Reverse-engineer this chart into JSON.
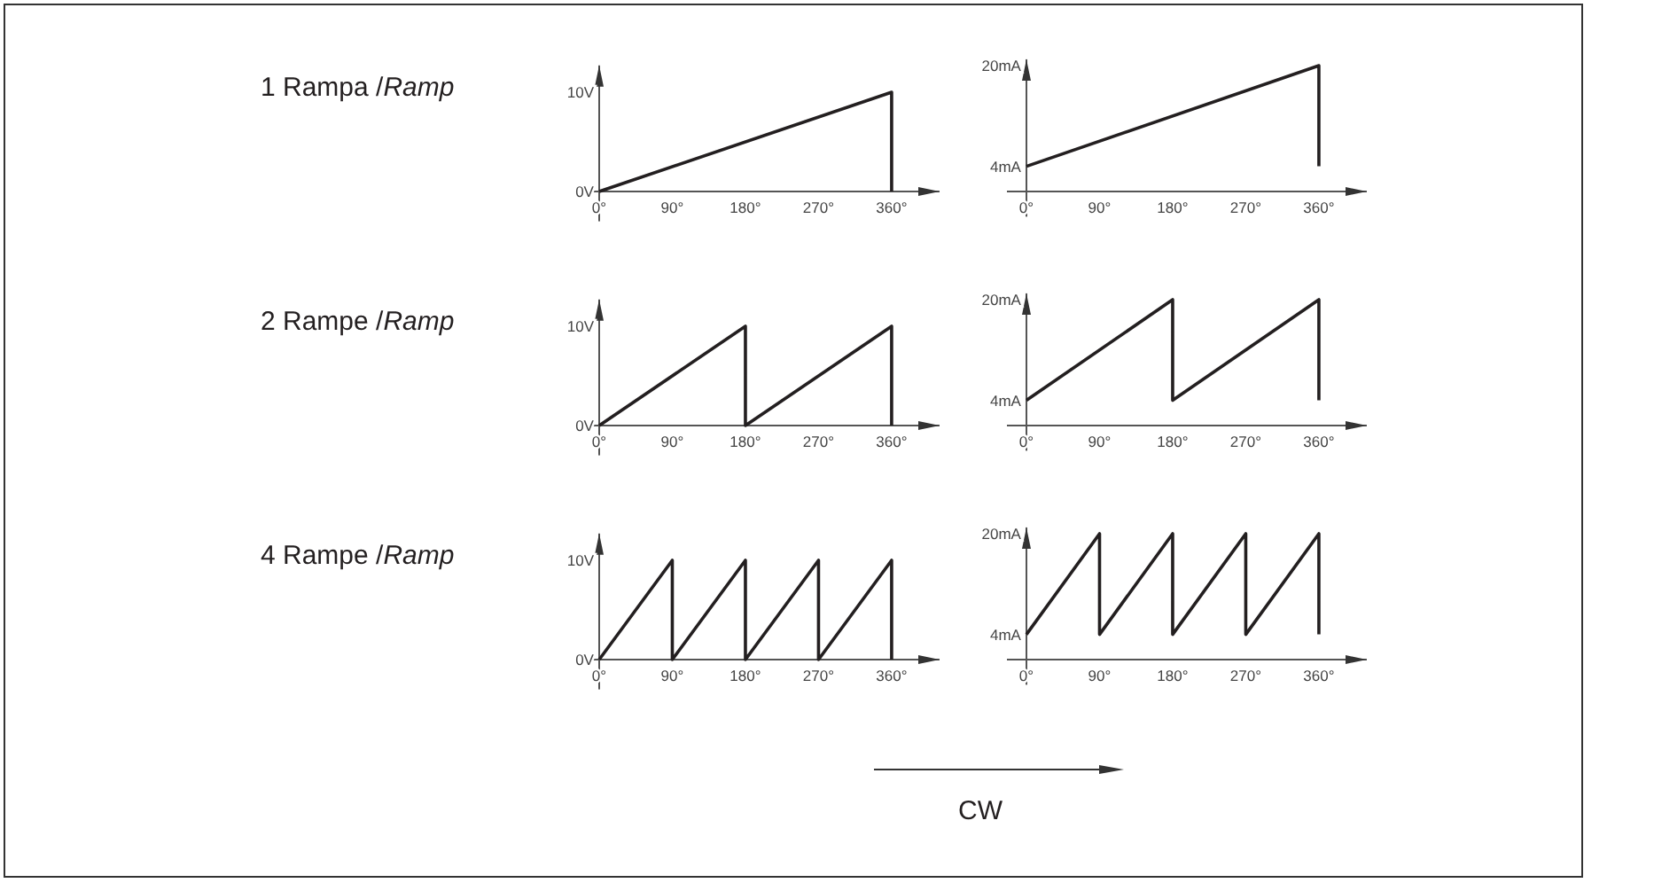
{
  "chart_data": [
    {
      "type": "line",
      "title": "1 Rampa /Ramp",
      "x": [
        0,
        360,
        360
      ],
      "values": [
        0,
        10,
        0
      ],
      "color": "#231f20",
      "xlim": [
        -24,
        419
      ],
      "ylim": [
        -3,
        12.7
      ],
      "xticks": [
        {
          "value": 0,
          "label": "0°"
        },
        {
          "value": 90,
          "label": "90°"
        },
        {
          "value": 180,
          "label": "180°"
        },
        {
          "value": 270,
          "label": "270°"
        },
        {
          "value": 360,
          "label": "360°"
        }
      ],
      "yticks": [
        {
          "value": 0,
          "label": "0V"
        },
        {
          "value": 10,
          "label": "10V"
        }
      ]
    },
    {
      "type": "line",
      "x": [
        0,
        360,
        360
      ],
      "values": [
        4,
        20,
        4
      ],
      "color": "#231f20",
      "xlim": [
        -24,
        419
      ],
      "ylim": [
        -4,
        21
      ],
      "xticks": [
        {
          "value": 0,
          "label": "0°"
        },
        {
          "value": 90,
          "label": "90°"
        },
        {
          "value": 180,
          "label": "180°"
        },
        {
          "value": 270,
          "label": "270°"
        },
        {
          "value": 360,
          "label": "360°"
        }
      ],
      "yticks": [
        {
          "value": 4,
          "label": "4mA"
        },
        {
          "value": 20,
          "label": "20mA"
        }
      ]
    },
    {
      "type": "line",
      "title": "2 Rampe /Ramp",
      "x": [
        0,
        180,
        180,
        360,
        360
      ],
      "values": [
        0,
        10,
        0,
        10,
        0
      ],
      "color": "#231f20",
      "xlim": [
        -24,
        419
      ],
      "ylim": [
        -3,
        12.7
      ],
      "xticks": [
        {
          "value": 0,
          "label": "0°"
        },
        {
          "value": 90,
          "label": "90°"
        },
        {
          "value": 180,
          "label": "180°"
        },
        {
          "value": 270,
          "label": "270°"
        },
        {
          "value": 360,
          "label": "360°"
        }
      ],
      "yticks": [
        {
          "value": 0,
          "label": "0V"
        },
        {
          "value": 10,
          "label": "10V"
        }
      ]
    },
    {
      "type": "line",
      "x": [
        0,
        180,
        180,
        360,
        360
      ],
      "values": [
        4,
        20,
        4,
        20,
        4
      ],
      "color": "#231f20",
      "xlim": [
        -24,
        419
      ],
      "ylim": [
        -4,
        21
      ],
      "xticks": [
        {
          "value": 0,
          "label": "0°"
        },
        {
          "value": 90,
          "label": "90°"
        },
        {
          "value": 180,
          "label": "180°"
        },
        {
          "value": 270,
          "label": "270°"
        },
        {
          "value": 360,
          "label": "360°"
        }
      ],
      "yticks": [
        {
          "value": 4,
          "label": "4mA"
        },
        {
          "value": 20,
          "label": "20mA"
        }
      ]
    },
    {
      "type": "line",
      "title": "4 Rampe /Ramp",
      "x": [
        0,
        90,
        90,
        180,
        180,
        270,
        270,
        360,
        360
      ],
      "values": [
        0,
        10,
        0,
        10,
        0,
        10,
        0,
        10,
        0
      ],
      "color": "#231f20",
      "xlim": [
        -24,
        419
      ],
      "ylim": [
        -3,
        12.7
      ],
      "xticks": [
        {
          "value": 0,
          "label": "0°"
        },
        {
          "value": 90,
          "label": "90°"
        },
        {
          "value": 180,
          "label": "180°"
        },
        {
          "value": 270,
          "label": "270°"
        },
        {
          "value": 360,
          "label": "360°"
        }
      ],
      "yticks": [
        {
          "value": 0,
          "label": "0V"
        },
        {
          "value": 10,
          "label": "10V"
        }
      ]
    },
    {
      "type": "line",
      "x": [
        0,
        90,
        90,
        180,
        180,
        270,
        270,
        360,
        360
      ],
      "values": [
        4,
        20,
        4,
        20,
        4,
        20,
        4,
        20,
        4
      ],
      "color": "#231f20",
      "xlim": [
        -24,
        419
      ],
      "ylim": [
        -4,
        21
      ],
      "xticks": [
        {
          "value": 0,
          "label": "0°"
        },
        {
          "value": 90,
          "label": "90°"
        },
        {
          "value": 180,
          "label": "180°"
        },
        {
          "value": 270,
          "label": "270°"
        },
        {
          "value": 360,
          "label": "360°"
        }
      ],
      "yticks": [
        {
          "value": 4,
          "label": "4mA"
        },
        {
          "value": 20,
          "label": "20mA"
        }
      ],
      "annotations": [
        "CW"
      ]
    }
  ]
}
